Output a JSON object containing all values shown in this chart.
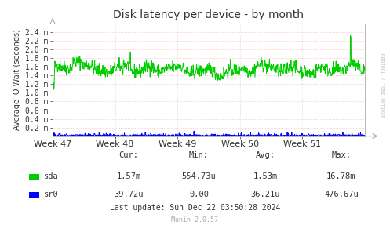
{
  "title": "Disk latency per device - by month",
  "ylabel": "Average IO Wait (seconds)",
  "background_color": "#ffffff",
  "plot_bg_color": "#ffffff",
  "grid_color_minor": "#ffcccc",
  "grid_color_major": "#cccccc",
  "x_ticks": [
    0,
    168,
    336,
    504,
    672,
    840
  ],
  "x_tick_labels": [
    "Week 47",
    "Week 48",
    "Week 49",
    "Week 50",
    "Week 51",
    ""
  ],
  "ylim": [
    0,
    0.0026
  ],
  "ytick_values": [
    0.0002,
    0.0004,
    0.0006,
    0.0008,
    0.001,
    0.0012,
    0.0014,
    0.0016,
    0.0018,
    0.002,
    0.0022,
    0.0024
  ],
  "ytick_labels": [
    "0.2 m",
    "0.4 m",
    "0.6 m",
    "0.8 m",
    "1.0 m",
    "1.2 m",
    "1.4 m",
    "1.6 m",
    "1.8 m",
    "2.0 m",
    "2.2 m",
    "2.4 m"
  ],
  "sda_color": "#00cc00",
  "sr0_color": "#0000ff",
  "legend_sda": "sda",
  "legend_sr0": "sr0",
  "footer_text": "Last update: Sun Dec 22 03:50:28 2024",
  "munin_text": "Munin 2.0.57",
  "stats_cur_sda": "1.57m",
  "stats_min_sda": "554.73u",
  "stats_avg_sda": "1.53m",
  "stats_max_sda": "16.78m",
  "stats_cur_sr0": "39.72u",
  "stats_min_sr0": "0.00",
  "stats_avg_sr0": "36.21u",
  "stats_max_sr0": "476.67u",
  "rrdtool_text": "RRDTOOL / TOBI OETIKER",
  "title_color": "#333333",
  "text_color": "#333333",
  "axis_color": "#aaaaaa",
  "arrow_color": "#aaaaaa"
}
